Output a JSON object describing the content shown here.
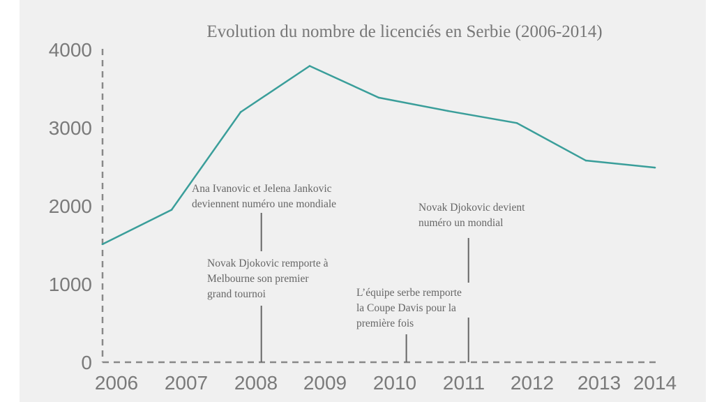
{
  "chart_data": {
    "type": "line",
    "title": "Evolution du nombre de licenciés en Serbie (2006-2014)",
    "xlabel": "",
    "ylabel": "",
    "x": [
      2006,
      2007,
      2008,
      2009,
      2010,
      2011,
      2012,
      2013,
      2014
    ],
    "categories": [
      "2006",
      "2007",
      "2008",
      "2009",
      "2010",
      "2011",
      "2012",
      "2013",
      "2014"
    ],
    "series": [
      {
        "name": "Licenciés",
        "values": [
          1510,
          1950,
          3200,
          3790,
          3385,
          3215,
          3060,
          2580,
          2490
        ],
        "color": "#3a9e9a"
      }
    ],
    "ylim": [
      0,
      4000
    ],
    "yticks": [
      "0",
      "1000",
      "2000",
      "3000",
      "4000"
    ],
    "grid": false,
    "annotations": [
      {
        "lines": [
          "Ana Ivanovic et Jelena Jankovic",
          "deviennent numéro une mondiale"
        ],
        "year": 2008.3
      },
      {
        "lines": [
          "Novak Djokovic remporte à",
          "Melbourne son premier",
          "grand tournoi"
        ],
        "year": 2008.3
      },
      {
        "lines": [
          "L’équipe serbe remporte",
          "la Coupe Davis pour la",
          "première fois"
        ],
        "year": 2010.4
      },
      {
        "lines": [
          "Novak Djokovic devient",
          "numéro un mondial"
        ],
        "year": 2011.3
      }
    ]
  }
}
